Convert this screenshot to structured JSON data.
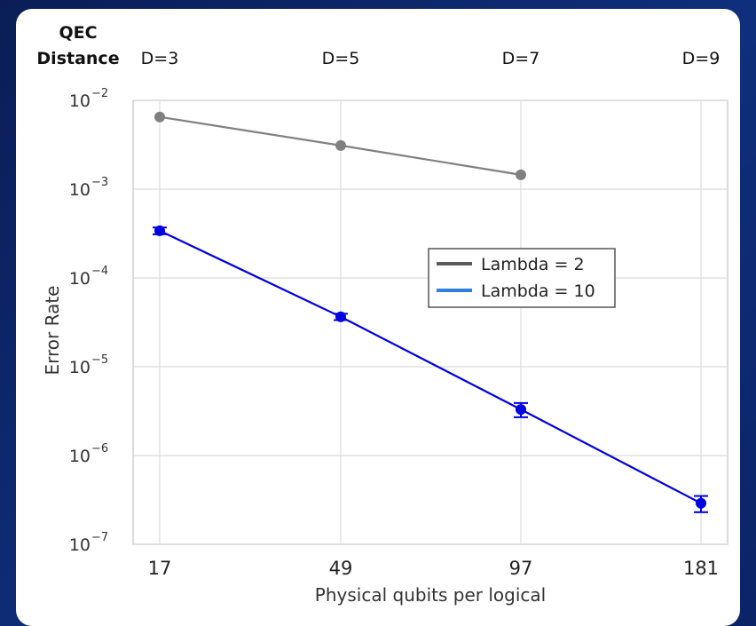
{
  "distance_header": {
    "label_line1": "QEC",
    "label_line2": "Distance",
    "labels": [
      "D=3",
      "D=5",
      "D=7",
      "D=9"
    ]
  },
  "chart_data": {
    "type": "line",
    "xlabel": "Physical qubits per logical",
    "ylabel": "Error Rate",
    "y_scale": "log",
    "ylim": [
      1e-07,
      0.01
    ],
    "y_ticks": [
      {
        "value": 0.01,
        "base": "10",
        "exp": "−2"
      },
      {
        "value": 0.001,
        "base": "10",
        "exp": "−3"
      },
      {
        "value": 0.0001,
        "base": "10",
        "exp": "−4"
      },
      {
        "value": 1e-05,
        "base": "10",
        "exp": "−5"
      },
      {
        "value": 1e-06,
        "base": "10",
        "exp": "−6"
      },
      {
        "value": 1e-07,
        "base": "10",
        "exp": "−7"
      }
    ],
    "x_categories": [
      "17",
      "49",
      "97",
      "181"
    ],
    "grid": true,
    "legend_position": "center-right",
    "series": [
      {
        "name": "Lambda = 2",
        "color": "#808080",
        "legend_color": "#5a5a5a",
        "error_bars": false,
        "values": [
          0.0065,
          0.0031,
          0.00145,
          null
        ]
      },
      {
        "name": "Lambda = 10",
        "color": "#0000e0",
        "legend_color": "#2f7fe0",
        "error_bars": true,
        "values": [
          0.00034,
          3.65e-05,
          3.3e-06,
          2.9e-07
        ],
        "err_low": [
          0.00031,
          3.35e-05,
          2.7e-06,
          2.3e-07
        ],
        "err_high": [
          0.00037,
          3.95e-05,
          3.9e-06,
          3.5e-07
        ]
      }
    ]
  }
}
